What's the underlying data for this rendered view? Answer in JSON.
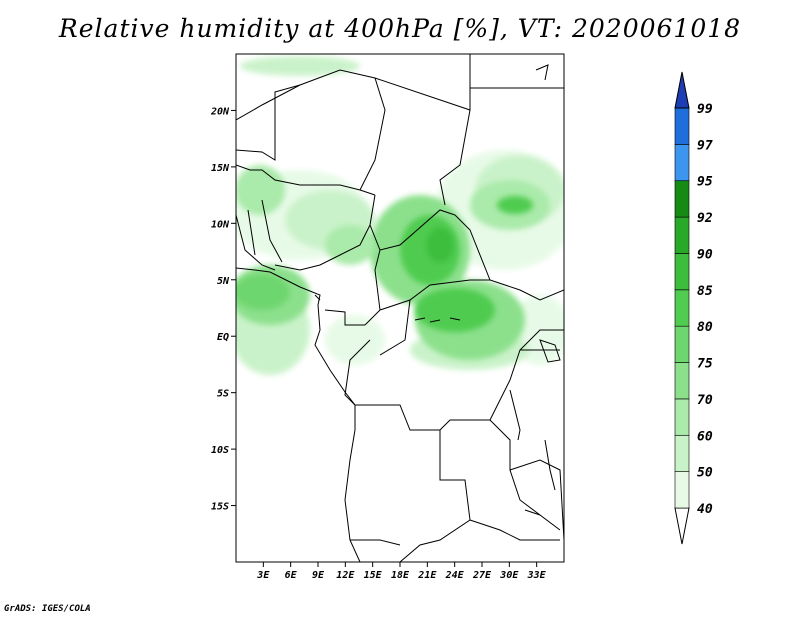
{
  "title": "Relative humidity at 400hPa [%], VT: 2020061018",
  "footer": "GrADS: IGES/COLA",
  "map": {
    "lon_range": [
      0,
      36
    ],
    "lat_range": [
      -20,
      25
    ],
    "lat_ticks": [
      {
        "value": 20,
        "label": "20N"
      },
      {
        "value": 15,
        "label": "15N"
      },
      {
        "value": 10,
        "label": "10N"
      },
      {
        "value": 5,
        "label": "5N"
      },
      {
        "value": 0,
        "label": "EQ"
      },
      {
        "value": -5,
        "label": "5S"
      },
      {
        "value": -10,
        "label": "10S"
      },
      {
        "value": -15,
        "label": "15S"
      }
    ],
    "lon_ticks": [
      {
        "value": 3,
        "label": "3E"
      },
      {
        "value": 6,
        "label": "6E"
      },
      {
        "value": 9,
        "label": "9E"
      },
      {
        "value": 12,
        "label": "12E"
      },
      {
        "value": 15,
        "label": "15E"
      },
      {
        "value": 18,
        "label": "18E"
      },
      {
        "value": 21,
        "label": "21E"
      },
      {
        "value": 24,
        "label": "24E"
      },
      {
        "value": 27,
        "label": "27E"
      },
      {
        "value": 30,
        "label": "30E"
      },
      {
        "value": 33,
        "label": "33E"
      }
    ]
  },
  "colorbar": {
    "levels": [
      {
        "label": "40",
        "color": "#e6fae6"
      },
      {
        "label": "50",
        "color": "#c8f2c8"
      },
      {
        "label": "60",
        "color": "#aaeaaa"
      },
      {
        "label": "70",
        "color": "#8ce08c"
      },
      {
        "label": "75",
        "color": "#6ed66e"
      },
      {
        "label": "80",
        "color": "#50cc50"
      },
      {
        "label": "85",
        "color": "#3cbe3c"
      },
      {
        "label": "90",
        "color": "#28aa28"
      },
      {
        "label": "92",
        "color": "#148c14"
      },
      {
        "label": "95",
        "color": "#3c96f0"
      },
      {
        "label": "97",
        "color": "#1e6edc"
      },
      {
        "label": "99",
        "color": "#1e50c8"
      }
    ],
    "below_color": "#ffffff",
    "above_color": "#1e3cb4"
  }
}
